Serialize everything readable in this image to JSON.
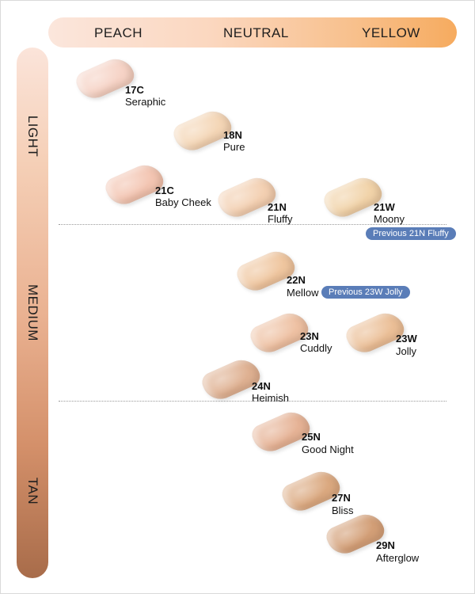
{
  "undertones": {
    "peach": "PEACH",
    "neutral": "NEUTRAL",
    "yellow": "YELLOW"
  },
  "depths": {
    "light": "LIGHT",
    "medium": "MEDIUM",
    "tan": "TAN"
  },
  "shades": [
    {
      "code": "17C",
      "name": "Seraphic",
      "color": "#f6d3c6"
    },
    {
      "code": "18N",
      "name": "Pure",
      "color": "#f4d6b6"
    },
    {
      "code": "21C",
      "name": "Baby Cheek",
      "color": "#f3c5b2"
    },
    {
      "code": "21N",
      "name": "Fluffy",
      "color": "#f3d0b2"
    },
    {
      "code": "21W",
      "name": "Moony",
      "color": "#f1d3a9"
    },
    {
      "code": "22N",
      "name": "Mellow",
      "color": "#efc69f"
    },
    {
      "code": "23N",
      "name": "Cuddly",
      "color": "#eec1a3"
    },
    {
      "code": "23W",
      "name": "Jolly",
      "color": "#ebbf97"
    },
    {
      "code": "24N",
      "name": "Heimish",
      "color": "#dfb192"
    },
    {
      "code": "25N",
      "name": "Good Night",
      "color": "#e6b396"
    },
    {
      "code": "27N",
      "name": "Bliss",
      "color": "#dba980"
    },
    {
      "code": "29N",
      "name": "Afterglow",
      "color": "#d39f77"
    }
  ],
  "notes": {
    "moony": "Previous 21N Fluffy",
    "mellow": "Previous 23W Jolly"
  }
}
